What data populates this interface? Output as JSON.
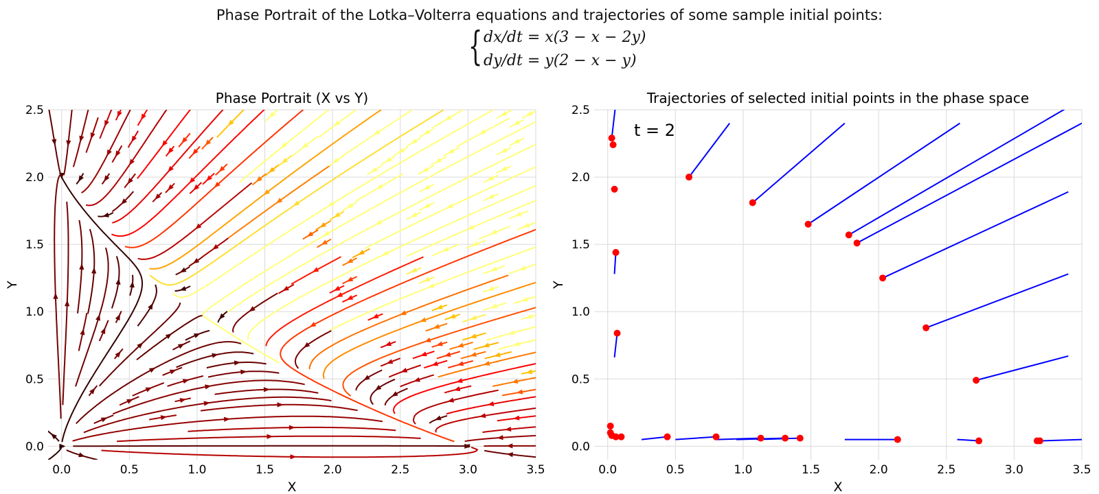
{
  "figure": {
    "suptitle": "Phase Portrait of the Lotka–Volterra equations and trajectories of some sample initial points:",
    "equation_dx": "dx/dt = x(3 − x − 2y)",
    "equation_dy": "dy/dt = y(2 − x − y)"
  },
  "chart_data": [
    {
      "type": "streamplot",
      "title": "Phase Portrait (X vs Y)",
      "xlabel": "X",
      "ylabel": "Y",
      "xlim": [
        -0.1,
        3.5
      ],
      "ylim": [
        -0.1,
        2.5
      ],
      "xticks": [
        "0.0",
        "0.5",
        "1.0",
        "1.5",
        "2.0",
        "2.5",
        "3.0",
        "3.5"
      ],
      "yticks": [
        "0.0",
        "0.5",
        "1.0",
        "1.5",
        "2.0",
        "2.5"
      ],
      "colormap": "hot (dark red to yellow by speed)",
      "grid": true,
      "system": {
        "dx_dt": "x(3 - x - 2y)",
        "dy_dt": "y(2 - x - y)"
      }
    },
    {
      "type": "scatter",
      "title": "Trajectories of selected initial points in the phase space",
      "xlabel": "X",
      "ylabel": "Y",
      "xlim": [
        -0.1,
        3.5
      ],
      "ylim": [
        -0.1,
        2.5
      ],
      "xticks": [
        "0.0",
        "0.5",
        "1.0",
        "1.5",
        "2.0",
        "2.5",
        "3.0",
        "3.5"
      ],
      "yticks": [
        "0.0",
        "0.5",
        "1.0",
        "1.5",
        "2.0",
        "2.5"
      ],
      "annotation": "t = 2",
      "grid": true,
      "colors": {
        "points": "#ff0000",
        "trajectories": "#0000ff"
      },
      "points": [
        {
          "x": 0.03,
          "y": 2.29
        },
        {
          "x": 0.04,
          "y": 2.24
        },
        {
          "x": 0.05,
          "y": 1.91
        },
        {
          "x": 0.06,
          "y": 1.44
        },
        {
          "x": 0.07,
          "y": 0.84
        },
        {
          "x": 0.6,
          "y": 2.0
        },
        {
          "x": 1.07,
          "y": 1.81
        },
        {
          "x": 1.48,
          "y": 1.65
        },
        {
          "x": 1.78,
          "y": 1.57
        },
        {
          "x": 1.84,
          "y": 1.51
        },
        {
          "x": 2.03,
          "y": 1.25
        },
        {
          "x": 2.35,
          "y": 0.88
        },
        {
          "x": 2.72,
          "y": 0.49
        },
        {
          "x": 0.02,
          "y": 0.15
        },
        {
          "x": 0.02,
          "y": 0.1
        },
        {
          "x": 0.03,
          "y": 0.08
        },
        {
          "x": 0.06,
          "y": 0.07
        },
        {
          "x": 0.1,
          "y": 0.07
        },
        {
          "x": 0.44,
          "y": 0.07
        },
        {
          "x": 0.8,
          "y": 0.07
        },
        {
          "x": 1.13,
          "y": 0.06
        },
        {
          "x": 1.31,
          "y": 0.06
        },
        {
          "x": 1.42,
          "y": 0.06
        },
        {
          "x": 2.14,
          "y": 0.05
        },
        {
          "x": 2.74,
          "y": 0.04
        },
        {
          "x": 3.17,
          "y": 0.04
        },
        {
          "x": 3.19,
          "y": 0.04
        }
      ],
      "trajectories": [
        {
          "from": [
            0.03,
            2.29
          ],
          "to": [
            0.06,
            2.55
          ]
        },
        {
          "from": [
            0.05,
            1.91
          ],
          "to": [
            0.05,
            1.91
          ]
        },
        {
          "from": [
            0.06,
            1.44
          ],
          "to": [
            0.05,
            1.28
          ]
        },
        {
          "from": [
            0.07,
            0.84
          ],
          "to": [
            0.05,
            0.66
          ]
        },
        {
          "from": [
            0.6,
            2.0
          ],
          "to": [
            0.9,
            2.4
          ]
        },
        {
          "from": [
            1.07,
            1.81
          ],
          "to": [
            1.75,
            2.4
          ]
        },
        {
          "from": [
            1.48,
            1.65
          ],
          "to": [
            2.6,
            2.4
          ]
        },
        {
          "from": [
            1.78,
            1.57
          ],
          "to": [
            3.4,
            2.52
          ]
        },
        {
          "from": [
            1.84,
            1.51
          ],
          "to": [
            3.5,
            2.4
          ]
        },
        {
          "from": [
            2.03,
            1.25
          ],
          "to": [
            3.4,
            1.89
          ]
        },
        {
          "from": [
            2.35,
            0.88
          ],
          "to": [
            3.4,
            1.28
          ]
        },
        {
          "from": [
            2.72,
            0.49
          ],
          "to": [
            3.4,
            0.67
          ]
        },
        {
          "from": [
            0.25,
            0.05
          ],
          "to": [
            0.44,
            0.07
          ]
        },
        {
          "from": [
            0.5,
            0.05
          ],
          "to": [
            0.8,
            0.07
          ]
        },
        {
          "from": [
            0.8,
            0.05
          ],
          "to": [
            1.13,
            0.06
          ]
        },
        {
          "from": [
            0.95,
            0.05
          ],
          "to": [
            1.31,
            0.06
          ]
        },
        {
          "from": [
            1.1,
            0.05
          ],
          "to": [
            1.42,
            0.06
          ]
        },
        {
          "from": [
            1.75,
            0.05
          ],
          "to": [
            2.14,
            0.05
          ]
        },
        {
          "from": [
            2.58,
            0.05
          ],
          "to": [
            2.74,
            0.04
          ]
        },
        {
          "from": [
            3.2,
            0.04
          ],
          "to": [
            3.5,
            0.05
          ]
        }
      ]
    }
  ]
}
